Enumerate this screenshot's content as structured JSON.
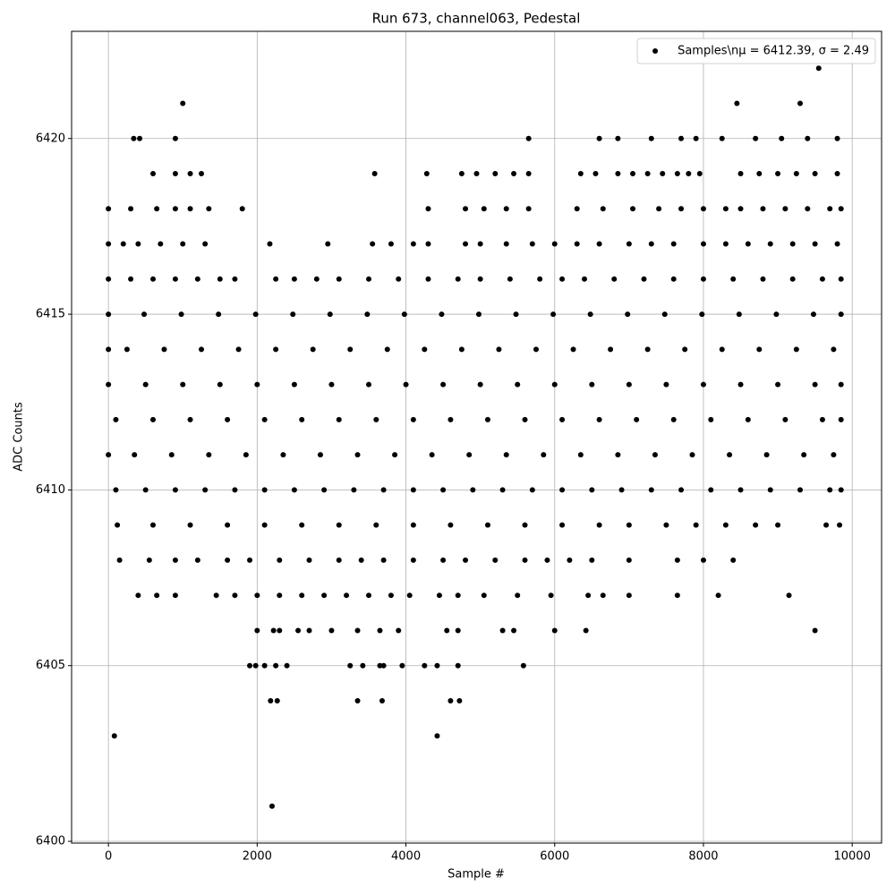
{
  "chart_data": {
    "type": "scatter",
    "title": "Run 673, channel063, Pedestal",
    "x_label": "Sample #",
    "y_label": "ADC Counts",
    "xlim": [
      -495,
      10395
    ],
    "xticks": [
      0,
      2000,
      4000,
      6000,
      8000,
      10000
    ],
    "ylim": [
      6399.95,
      6423.05
    ],
    "yticks": [
      6400,
      6405,
      6410,
      6415,
      6420
    ],
    "grid": true,
    "legend": "upper right",
    "x": [
      0,
      480,
      980,
      1480,
      1980,
      2480,
      2980,
      3480,
      3980,
      4480,
      4980,
      5480,
      5980,
      6480,
      6980,
      7480,
      7980,
      8480,
      8980,
      9480,
      9850,
      0,
      250,
      750,
      1250,
      1750,
      2250,
      2750,
      3250,
      3750,
      4250,
      4750,
      5250,
      5750,
      6250,
      6750,
      7250,
      7750,
      8250,
      8750,
      9250,
      9750,
      0,
      500,
      1000,
      1500,
      2000,
      2500,
      3000,
      3500,
      4000,
      4500,
      5000,
      5500,
      6000,
      6500,
      7000,
      7500,
      8000,
      8500,
      9000,
      9500,
      9850,
      100,
      600,
      1100,
      1600,
      2100,
      2600,
      3100,
      3600,
      4100,
      4600,
      5100,
      5600,
      6100,
      6600,
      7100,
      7600,
      8100,
      8600,
      9100,
      9600,
      9850,
      0,
      350,
      850,
      1350,
      1850,
      2350,
      2850,
      3350,
      3850,
      4350,
      4850,
      5350,
      5850,
      6350,
      6850,
      7350,
      7850,
      8350,
      8850,
      9350,
      9750,
      100,
      500,
      900,
      1300,
      1700,
      2100,
      2500,
      2900,
      3300,
      3700,
      4100,
      4500,
      4900,
      5300,
      5700,
      6100,
      6500,
      6900,
      7300,
      7700,
      8100,
      8500,
      8900,
      9300,
      9700,
      9850,
      0,
      200,
      400,
      700,
      1000,
      1300,
      2170,
      2950,
      3550,
      3800,
      4100,
      4300,
      4800,
      5000,
      5350,
      5700,
      6000,
      6300,
      6600,
      7000,
      7300,
      7600,
      8000,
      8300,
      8600,
      8900,
      9200,
      9500,
      9800,
      0,
      300,
      600,
      900,
      1200,
      1500,
      1700,
      2250,
      2500,
      2800,
      3100,
      3500,
      3900,
      4300,
      4700,
      5000,
      5400,
      5800,
      6100,
      6400,
      6800,
      7200,
      7600,
      8000,
      8400,
      8800,
      9200,
      9600,
      9850,
      120,
      600,
      1100,
      1600,
      2100,
      2600,
      3100,
      3600,
      4100,
      4600,
      5100,
      5600,
      6100,
      6600,
      7000,
      7500,
      7900,
      8300,
      8700,
      9000,
      9650,
      9830,
      150,
      550,
      900,
      1200,
      1600,
      1900,
      2300,
      2700,
      3100,
      3400,
      3700,
      4100,
      4500,
      4800,
      5200,
      5600,
      5900,
      6200,
      6500,
      7000,
      7650,
      8000,
      8400,
      400,
      650,
      900,
      1450,
      1700,
      2000,
      2300,
      2600,
      2900,
      3200,
      3500,
      3800,
      4050,
      4450,
      4700,
      5050,
      5500,
      5950,
      6450,
      6650,
      7000,
      7650,
      8200,
      9150,
      0,
      300,
      650,
      900,
      1100,
      1350,
      1800,
      4300,
      4800,
      5050,
      5350,
      5650,
      6300,
      6650,
      7050,
      7400,
      7700,
      8000,
      8300,
      8500,
      8800,
      9100,
      9400,
      9700,
      9850,
      600,
      900,
      1100,
      1250,
      3580,
      4280,
      4750,
      4950,
      5200,
      5450,
      5650,
      6350,
      6550,
      6850,
      7050,
      7250,
      7450,
      7650,
      7800,
      7950,
      8500,
      8750,
      9000,
      9250,
      9500,
      9800,
      2000,
      2220,
      2300,
      2550,
      2700,
      3000,
      3350,
      3650,
      3900,
      4550,
      4700,
      5300,
      5450,
      6000,
      6420,
      9500,
      1900,
      1980,
      2100,
      2250,
      2400,
      3250,
      3420,
      3650,
      3700,
      3950,
      4250,
      4420,
      4700,
      5580,
      2180,
      2270,
      3350,
      3680,
      4600,
      4720,
      80,
      4420,
      2200,
      340,
      420,
      900,
      5650,
      6600,
      6850,
      7300,
      7700,
      7900,
      8250,
      8700,
      9050,
      9400,
      9800,
      1000,
      8450,
      9300,
      9550
    ],
    "series": [
      {
        "name": "Samples\\nμ = 6412.39, σ = 2.49",
        "color": "#000000",
        "values": [
          6415,
          6415,
          6415,
          6415,
          6415,
          6415,
          6415,
          6415,
          6415,
          6415,
          6415,
          6415,
          6415,
          6415,
          6415,
          6415,
          6415,
          6415,
          6415,
          6415,
          6415,
          6414,
          6414,
          6414,
          6414,
          6414,
          6414,
          6414,
          6414,
          6414,
          6414,
          6414,
          6414,
          6414,
          6414,
          6414,
          6414,
          6414,
          6414,
          6414,
          6414,
          6414,
          6413,
          6413,
          6413,
          6413,
          6413,
          6413,
          6413,
          6413,
          6413,
          6413,
          6413,
          6413,
          6413,
          6413,
          6413,
          6413,
          6413,
          6413,
          6413,
          6413,
          6413,
          6412,
          6412,
          6412,
          6412,
          6412,
          6412,
          6412,
          6412,
          6412,
          6412,
          6412,
          6412,
          6412,
          6412,
          6412,
          6412,
          6412,
          6412,
          6412,
          6412,
          6412,
          6411,
          6411,
          6411,
          6411,
          6411,
          6411,
          6411,
          6411,
          6411,
          6411,
          6411,
          6411,
          6411,
          6411,
          6411,
          6411,
          6411,
          6411,
          6411,
          6411,
          6411,
          6410,
          6410,
          6410,
          6410,
          6410,
          6410,
          6410,
          6410,
          6410,
          6410,
          6410,
          6410,
          6410,
          6410,
          6410,
          6410,
          6410,
          6410,
          6410,
          6410,
          6410,
          6410,
          6410,
          6410,
          6410,
          6410,
          6417,
          6417,
          6417,
          6417,
          6417,
          6417,
          6417,
          6417,
          6417,
          6417,
          6417,
          6417,
          6417,
          6417,
          6417,
          6417,
          6417,
          6417,
          6417,
          6417,
          6417,
          6417,
          6417,
          6417,
          6417,
          6417,
          6417,
          6417,
          6417,
          6416,
          6416,
          6416,
          6416,
          6416,
          6416,
          6416,
          6416,
          6416,
          6416,
          6416,
          6416,
          6416,
          6416,
          6416,
          6416,
          6416,
          6416,
          6416,
          6416,
          6416,
          6416,
          6416,
          6416,
          6416,
          6416,
          6416,
          6416,
          6416,
          6409,
          6409,
          6409,
          6409,
          6409,
          6409,
          6409,
          6409,
          6409,
          6409,
          6409,
          6409,
          6409,
          6409,
          6409,
          6409,
          6409,
          6409,
          6409,
          6409,
          6409,
          6409,
          6408,
          6408,
          6408,
          6408,
          6408,
          6408,
          6408,
          6408,
          6408,
          6408,
          6408,
          6408,
          6408,
          6408,
          6408,
          6408,
          6408,
          6408,
          6408,
          6408,
          6408,
          6408,
          6408,
          6407,
          6407,
          6407,
          6407,
          6407,
          6407,
          6407,
          6407,
          6407,
          6407,
          6407,
          6407,
          6407,
          6407,
          6407,
          6407,
          6407,
          6407,
          6407,
          6407,
          6407,
          6407,
          6407,
          6407,
          6418,
          6418,
          6418,
          6418,
          6418,
          6418,
          6418,
          6418,
          6418,
          6418,
          6418,
          6418,
          6418,
          6418,
          6418,
          6418,
          6418,
          6418,
          6418,
          6418,
          6418,
          6418,
          6418,
          6418,
          6418,
          6419,
          6419,
          6419,
          6419,
          6419,
          6419,
          6419,
          6419,
          6419,
          6419,
          6419,
          6419,
          6419,
          6419,
          6419,
          6419,
          6419,
          6419,
          6419,
          6419,
          6419,
          6419,
          6419,
          6419,
          6419,
          6419,
          6406,
          6406,
          6406,
          6406,
          6406,
          6406,
          6406,
          6406,
          6406,
          6406,
          6406,
          6406,
          6406,
          6406,
          6406,
          6406,
          6405,
          6405,
          6405,
          6405,
          6405,
          6405,
          6405,
          6405,
          6405,
          6405,
          6405,
          6405,
          6405,
          6405,
          6404,
          6404,
          6404,
          6404,
          6404,
          6404,
          6403,
          6403,
          6401,
          6420,
          6420,
          6420,
          6420,
          6420,
          6420,
          6420,
          6420,
          6420,
          6420,
          6420,
          6420,
          6420,
          6420,
          6421,
          6421,
          6421,
          6422
        ]
      }
    ]
  }
}
